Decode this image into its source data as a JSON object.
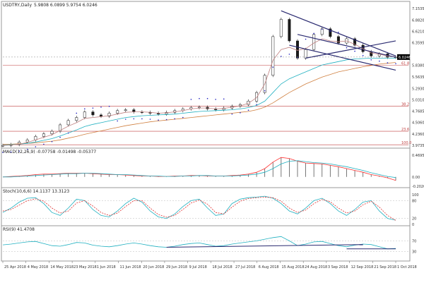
{
  "header": {
    "symbol": "USDTRY,Daily",
    "ohlc": "5.9808 6.0899 5.9754 6.0246",
    "macd": "MACD(12,26,9) -0.07758 -0.01498 -0.05377",
    "stoch": "Stoch(10,6,6) 14.1137 13.3123",
    "rsi": "RSI(9) 41.4708"
  },
  "colors": {
    "price_up": "#1a1a1a",
    "price_down": "#1a1a1a",
    "ma_fast": "#c08080",
    "ma_mid": "#20b0c0",
    "ma_slow": "#d08040",
    "trendline": "#2a2a70",
    "sar": "#2020c0",
    "fib": "#c04040",
    "macd_main": "#ff3030",
    "macd_signal": "#20b0c0",
    "stoch_main": "#20b0c0",
    "stoch_signal": "#e03030",
    "rsi": "#20b0c0",
    "current_price_box": "#000000"
  },
  "chart_data": [
    {
      "type": "line",
      "name": "price",
      "title": "USDTRY,Daily",
      "x_labels": [
        "25 Apr 2018",
        "4 May 2018",
        "14 May 2018",
        "23 May 2018",
        "1 Jun 2018",
        "11 Jun 2018",
        "20 Jun 2018",
        "29 Jun 2018",
        "9 Jul 2018",
        "18 Jul 2018",
        "27 Jul 2018",
        "6 Aug 2018",
        "15 Aug 2018",
        "24 Aug 2018",
        "3 Sep 2018",
        "12 Sep 2018",
        "21 Sep 2018",
        "1 Oct 2018"
      ],
      "y_ticks": [
        "7.1535",
        "6.8820",
        "6.6210",
        "6.3595",
        "6.0246",
        "5.8380",
        "5.5635",
        "5.2930",
        "5.0310",
        "4.7685",
        "4.5060",
        "4.2360",
        "3.9735"
      ],
      "ylim": [
        3.9735,
        7.1535
      ],
      "current_price": "6.0246",
      "fib_labels": [
        "61.8",
        "38.2",
        "23.6",
        "100.0"
      ],
      "fib_levels": [
        5.838,
        4.884,
        4.301,
        3.986
      ],
      "close": [
        3.97,
        3.99,
        4.05,
        4.1,
        4.18,
        4.24,
        4.3,
        4.45,
        4.55,
        4.62,
        4.75,
        4.68,
        4.65,
        4.72,
        4.78,
        4.8,
        4.75,
        4.74,
        4.72,
        4.7,
        4.74,
        4.78,
        4.82,
        4.85,
        4.86,
        4.82,
        4.8,
        4.84,
        4.88,
        4.92,
        5.0,
        5.2,
        5.6,
        6.5,
        6.9,
        6.4,
        6.0,
        6.2,
        6.55,
        6.68,
        6.5,
        6.35,
        6.45,
        6.3,
        6.15,
        6.05,
        6.1,
        6.02,
        6.0246
      ],
      "ma_fast": [
        3.97,
        3.98,
        4.0,
        4.04,
        4.1,
        4.16,
        4.22,
        4.32,
        4.42,
        4.5,
        4.6,
        4.62,
        4.64,
        4.66,
        4.7,
        4.74,
        4.75,
        4.75,
        4.74,
        4.72,
        4.73,
        4.75,
        4.78,
        4.82,
        4.84,
        4.84,
        4.82,
        4.83,
        4.86,
        4.89,
        4.95,
        5.08,
        5.4,
        5.95,
        6.2,
        6.25,
        6.18,
        6.22,
        6.35,
        6.45,
        6.4,
        6.38,
        6.4,
        6.32,
        6.22,
        6.12,
        6.09,
        6.05,
        6.03
      ],
      "ma_mid": [
        3.98,
        3.99,
        4.0,
        4.02,
        4.05,
        4.09,
        4.13,
        4.19,
        4.26,
        4.33,
        4.41,
        4.46,
        4.5,
        4.54,
        4.58,
        4.62,
        4.64,
        4.66,
        4.67,
        4.68,
        4.69,
        4.7,
        4.72,
        4.74,
        4.76,
        4.77,
        4.78,
        4.79,
        4.8,
        4.82,
        4.85,
        4.9,
        5.0,
        5.2,
        5.4,
        5.52,
        5.6,
        5.68,
        5.76,
        5.84,
        5.88,
        5.92,
        5.96,
        5.98,
        5.99,
        6.0,
        6.0,
        6.0,
        6.0
      ],
      "ma_slow": [
        4.0,
        4.0,
        4.01,
        4.02,
        4.03,
        4.05,
        4.07,
        4.1,
        4.14,
        4.18,
        4.23,
        4.27,
        4.31,
        4.35,
        4.39,
        4.43,
        4.46,
        4.49,
        4.52,
        4.54,
        4.56,
        4.58,
        4.6,
        4.62,
        4.64,
        4.66,
        4.68,
        4.7,
        4.72,
        4.74,
        4.76,
        4.8,
        4.86,
        4.96,
        5.08,
        5.2,
        5.3,
        5.4,
        5.48,
        5.56,
        5.62,
        5.68,
        5.72,
        5.76,
        5.8,
        5.83,
        5.86,
        5.88,
        5.9
      ]
    },
    {
      "type": "line",
      "name": "macd",
      "title": "MACD(12,26,9) -0.07758 -0.01498 -0.05377",
      "y_ticks": [
        "0.469553",
        "0.00",
        "-0.202044"
      ],
      "ylim": [
        -0.202044,
        0.469553
      ],
      "histogram": [
        0.0,
        0.01,
        0.02,
        0.03,
        0.05,
        0.06,
        0.06,
        0.07,
        0.08,
        0.08,
        0.08,
        0.07,
        0.06,
        0.05,
        0.05,
        0.04,
        0.03,
        0.02,
        0.02,
        0.01,
        0.01,
        0.02,
        0.02,
        0.03,
        0.03,
        0.02,
        0.02,
        0.02,
        0.03,
        0.04,
        0.06,
        0.1,
        0.18,
        0.32,
        0.42,
        0.4,
        0.34,
        0.3,
        0.29,
        0.28,
        0.25,
        0.22,
        0.18,
        0.14,
        0.1,
        0.05,
        0.02,
        -0.02,
        -0.07758
      ],
      "signal": [
        0.0,
        0.0,
        0.01,
        0.02,
        0.03,
        0.04,
        0.05,
        0.06,
        0.07,
        0.07,
        0.08,
        0.08,
        0.07,
        0.06,
        0.05,
        0.05,
        0.04,
        0.03,
        0.02,
        0.02,
        0.01,
        0.01,
        0.02,
        0.02,
        0.03,
        0.03,
        0.02,
        0.02,
        0.02,
        0.03,
        0.04,
        0.06,
        0.1,
        0.18,
        0.28,
        0.34,
        0.35,
        0.33,
        0.31,
        0.3,
        0.28,
        0.25,
        0.22,
        0.18,
        0.14,
        0.09,
        0.05,
        0.01,
        -0.01498
      ]
    },
    {
      "type": "line",
      "name": "stochastic",
      "title": "Stoch(10,6,6) 14.1137 13.3123",
      "y_ticks": [
        "100",
        "80",
        "20",
        "0"
      ],
      "ylim": [
        0,
        100
      ],
      "main": [
        40,
        55,
        75,
        88,
        90,
        70,
        40,
        30,
        55,
        85,
        80,
        50,
        30,
        25,
        45,
        70,
        88,
        75,
        45,
        25,
        20,
        35,
        60,
        80,
        85,
        55,
        30,
        35,
        70,
        85,
        90,
        92,
        95,
        88,
        70,
        45,
        35,
        55,
        80,
        88,
        70,
        45,
        30,
        50,
        75,
        80,
        45,
        20,
        14.11
      ],
      "signal": [
        45,
        50,
        65,
        80,
        86,
        78,
        55,
        38,
        45,
        72,
        80,
        62,
        40,
        30,
        38,
        60,
        80,
        80,
        55,
        33,
        24,
        30,
        50,
        72,
        82,
        68,
        40,
        35,
        58,
        78,
        87,
        90,
        92,
        90,
        78,
        55,
        40,
        48,
        70,
        84,
        76,
        55,
        38,
        45,
        66,
        78,
        58,
        30,
        13.31
      ]
    },
    {
      "type": "line",
      "name": "rsi",
      "title": "RSI(9) 41.4708",
      "y_ticks": [
        "70",
        "30"
      ],
      "ylim": [
        0,
        100
      ],
      "values": [
        55,
        58,
        62,
        66,
        68,
        60,
        52,
        50,
        56,
        64,
        62,
        54,
        50,
        48,
        52,
        58,
        62,
        58,
        52,
        48,
        46,
        50,
        56,
        60,
        62,
        56,
        50,
        52,
        58,
        62,
        66,
        70,
        76,
        82,
        86,
        70,
        52,
        58,
        66,
        68,
        60,
        52,
        48,
        54,
        58,
        56,
        48,
        40,
        41.47
      ]
    }
  ]
}
